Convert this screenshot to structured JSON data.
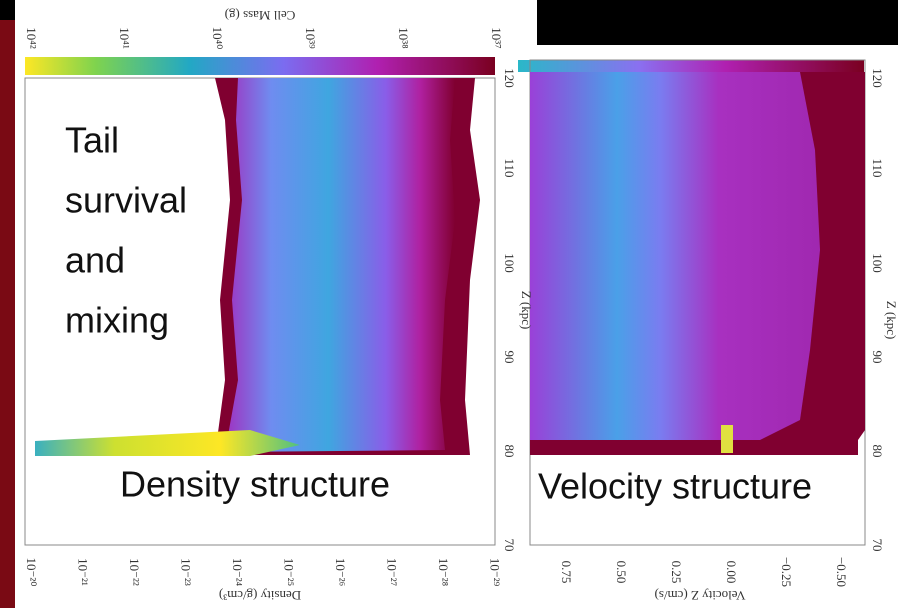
{
  "slide": {
    "tail_note": [
      "Tail",
      "survival",
      "and",
      "mixing"
    ],
    "density_caption": "Density structure",
    "velocity_caption": "Velocity structure"
  },
  "density_plot": {
    "colorbar_label": "Cell Mass (g)",
    "colorbar_ticks": [
      "10⁴²",
      "10⁴¹",
      "10⁴⁰",
      "10³⁹",
      "10³⁸",
      "10³⁷"
    ],
    "y_label": "Z (kpc)",
    "y_ticks": [
      "120",
      "110",
      "100",
      "90",
      "80",
      "70"
    ],
    "x_label": "Density (g/cm³)",
    "x_ticks": [
      "10⁻²⁰",
      "10⁻²¹",
      "10⁻²²",
      "10⁻²³",
      "10⁻²⁴",
      "10⁻²⁵",
      "10⁻²⁶",
      "10⁻²⁷",
      "10⁻²⁸",
      "10⁻²⁹"
    ]
  },
  "velocity_plot": {
    "y_label": "Z (kpc)",
    "y_ticks": [
      "120",
      "110",
      "100",
      "90",
      "80",
      "70"
    ],
    "x_label": "Velocity Z (cm/s)",
    "x_ticks": [
      "0.75",
      "0.50",
      "0.25",
      "0.00",
      "−0.25",
      "−0.50"
    ]
  }
}
